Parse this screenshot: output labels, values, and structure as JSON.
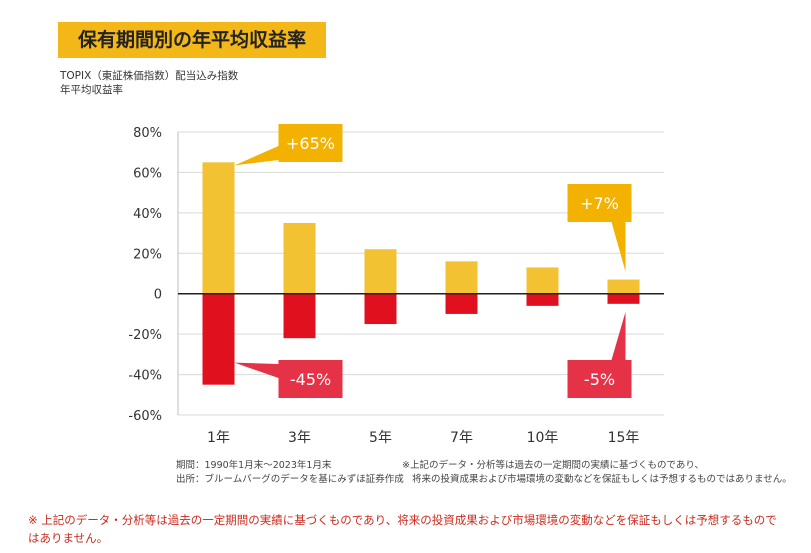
{
  "header": {
    "title": "保有期間別の年平均収益率",
    "subtitle_line1": "TOPIX（東証株価指数）配当込み指数",
    "subtitle_line2": "年平均収益率"
  },
  "chart_data": {
    "type": "bar",
    "categories": [
      "1年",
      "3年",
      "5年",
      "7年",
      "10年",
      "15年"
    ],
    "series": [
      {
        "values": [
          65,
          35,
          22,
          16,
          13,
          7
        ]
      },
      {
        "values": [
          -45,
          -22,
          -15,
          -10,
          -6,
          -5
        ]
      }
    ],
    "ylim": [
      -60,
      80
    ],
    "y_ticks": [
      80,
      60,
      40,
      20,
      0,
      -20,
      -40,
      -60
    ],
    "y_tick_labels": [
      "80%",
      "60%",
      "40%",
      "20%",
      "0",
      "-20%",
      "-40%",
      "-60%"
    ],
    "grid": true,
    "annotations": [
      {
        "text": "+65%",
        "category": "1年",
        "value": 65
      },
      {
        "text": "-45%",
        "category": "1年",
        "value": -45
      },
      {
        "text": "+7%",
        "category": "15年",
        "value": 7
      },
      {
        "text": "-5%",
        "category": "15年",
        "value": -5
      }
    ],
    "colors": {
      "positive": "#f3c232",
      "negative": "#e0101e",
      "positive_callout": "#f3b200",
      "negative_callout": "#e63247"
    }
  },
  "footer": {
    "left_line1": "期間：1990年1月末～2023年1月末",
    "left_line2": "出所：ブルームバーグのデータを基にみずほ証券作成",
    "right_line1": "※上記のデータ・分析等は過去の一定期間の実績に基づくものであり、",
    "right_line2": "将来の投資成果および市場環境の変動などを保証もしくは予想するものではありません。"
  },
  "note": "※ 上記のデータ・分析等は過去の一定期間の実績に基づくものであり、将来の投資成果および市場環境の変動などを保証もしくは予想するものではありません。"
}
